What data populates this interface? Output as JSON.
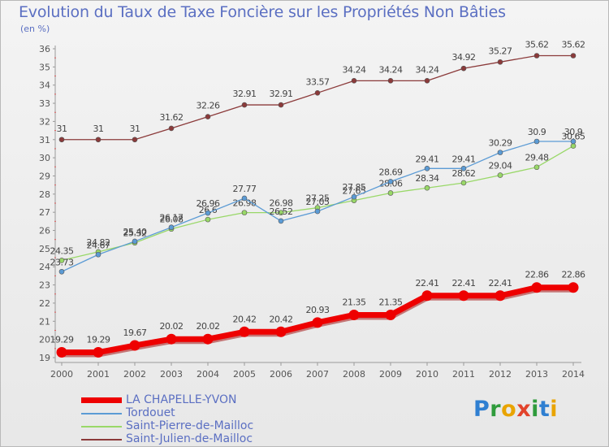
{
  "title": "Evolution du Taux de Taxe Foncière sur les Propriétés Non Bâties",
  "unit_label": "(en %)",
  "brand": {
    "letters": [
      {
        "ch": "P",
        "color": "#2f7fd1"
      },
      {
        "ch": "r",
        "color": "#2f9b3c"
      },
      {
        "ch": "o",
        "color": "#e9a400"
      },
      {
        "ch": "x",
        "color": "#e2432b"
      },
      {
        "ch": "i",
        "color": "#2f9b3c"
      },
      {
        "ch": "t",
        "color": "#2f7fd1"
      },
      {
        "ch": "i",
        "color": "#e9a400"
      }
    ]
  },
  "chart_data": {
    "type": "line",
    "categories": [
      "2000",
      "2001",
      "2002",
      "2003",
      "2004",
      "2005",
      "2006",
      "2007",
      "2008",
      "2009",
      "2010",
      "2011",
      "2012",
      "2013",
      "2014"
    ],
    "ylim": [
      19,
      36
    ],
    "yticks": [
      "19",
      "20",
      "21",
      "22",
      "23",
      "24",
      "25",
      "26",
      "27",
      "28",
      "29",
      "30",
      "31",
      "32",
      "33",
      "34",
      "35",
      "36"
    ],
    "grid": false,
    "legend_position": "bottom-left",
    "series": [
      {
        "name": "LA CHAPELLE-YVON",
        "color": "#ee0000",
        "width": 7,
        "values": [
          19.29,
          19.29,
          19.67,
          20.02,
          20.02,
          20.42,
          20.42,
          20.93,
          21.35,
          21.35,
          22.41,
          22.41,
          22.41,
          22.86,
          22.86
        ],
        "labels": [
          "19.29",
          "19.29",
          "19.67",
          "20.02",
          "20.02",
          "20.42",
          "20.42",
          "20.93",
          "21.35",
          "21.35",
          "22.41",
          "22.41",
          "22.41",
          "22.86",
          "22.86"
        ]
      },
      {
        "name": "Tordouet",
        "color": "#5b9bd5",
        "width": 1.3,
        "values": [
          23.73,
          24.67,
          25.4,
          26.17,
          26.96,
          27.77,
          26.52,
          27.05,
          27.85,
          28.69,
          29.41,
          29.41,
          30.29,
          30.9,
          30.9
        ],
        "labels": [
          "23.73",
          "24.67",
          "25.40",
          "26.17",
          "26.96",
          "27.77",
          "26.52",
          "27.05",
          "27.85",
          "28.69",
          "29.41",
          "29.41",
          "30.29",
          "30.9",
          "30.9"
        ]
      },
      {
        "name": "Saint-Pierre-de-Mailloc",
        "color": "#99d868",
        "width": 1.3,
        "values": [
          24.35,
          24.82,
          25.32,
          26.08,
          26.6,
          26.98,
          26.98,
          27.25,
          27.65,
          28.06,
          28.34,
          28.62,
          29.04,
          29.48,
          30.65
        ],
        "labels": [
          "24.35",
          "24.82",
          "25.32",
          "26.08",
          "26.6",
          "26.98",
          "26.98",
          "27.25",
          "27.65",
          "28.06",
          "28.34",
          "28.62",
          "29.04",
          "29.48",
          "30.65"
        ]
      },
      {
        "name": "Saint-Julien-de-Mailloc",
        "color": "#8b3a3a",
        "width": 1.3,
        "values": [
          31,
          31,
          31,
          31.62,
          32.26,
          32.91,
          32.91,
          33.57,
          34.24,
          34.24,
          34.24,
          34.92,
          35.27,
          35.62,
          35.62
        ],
        "labels": [
          "31",
          "31",
          "31",
          "31.62",
          "32.26",
          "32.91",
          "32.91",
          "33.57",
          "34.24",
          "34.24",
          "34.24",
          "34.92",
          "35.27",
          "35.62",
          "35.62"
        ]
      }
    ]
  }
}
